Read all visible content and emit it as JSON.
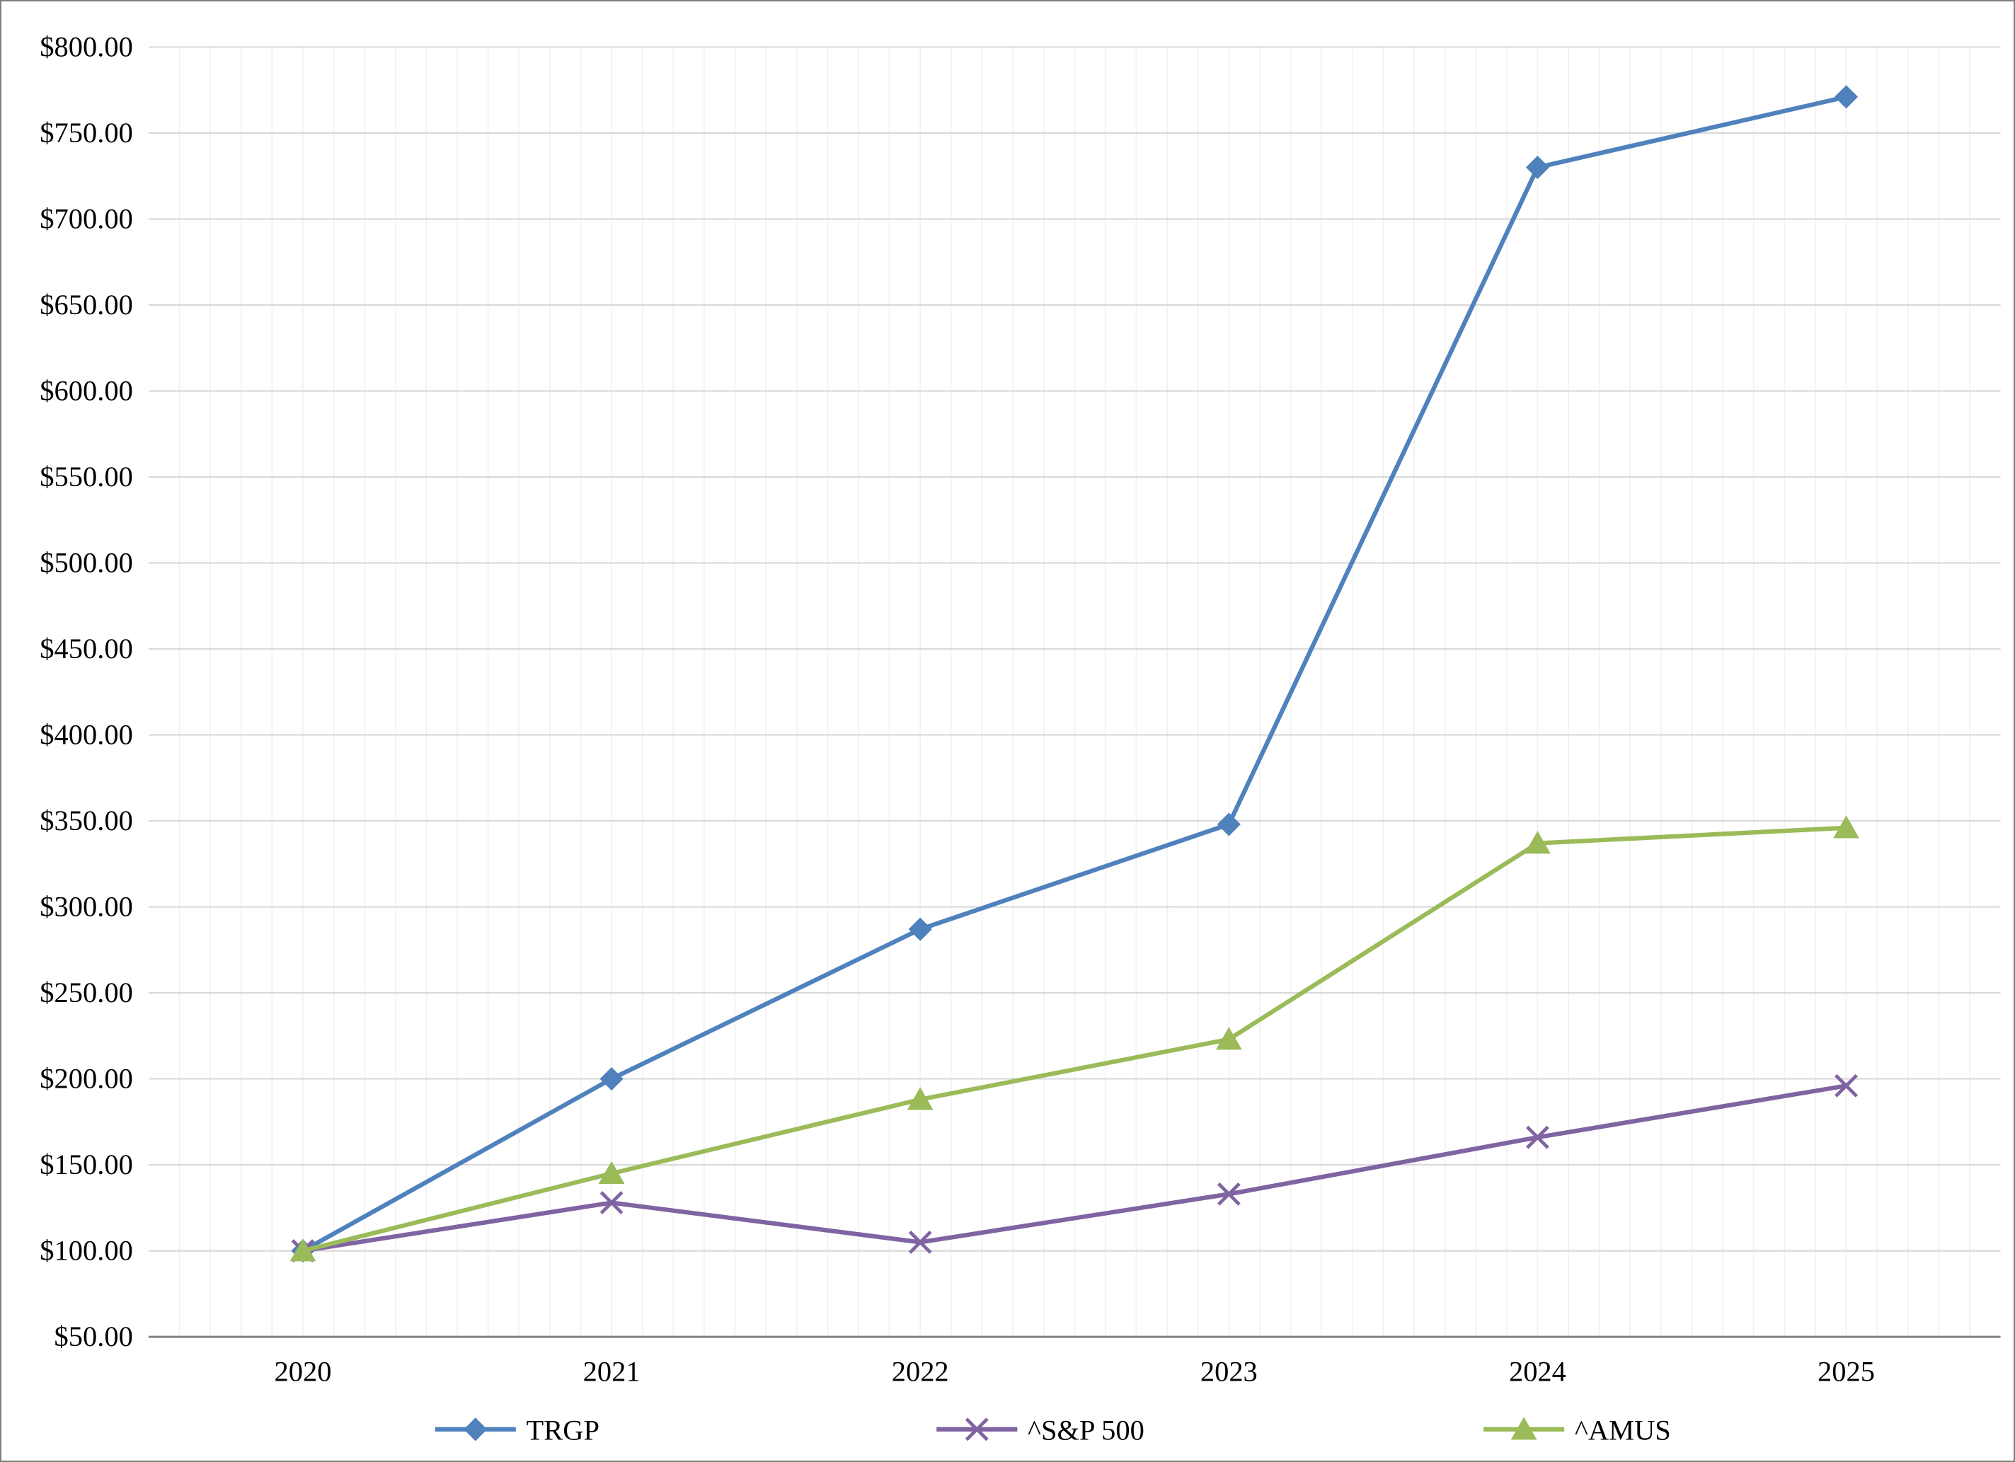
{
  "page": {
    "background": "#ffffff",
    "border_color": "#7f7f7f"
  },
  "chart_data": {
    "type": "line",
    "title": "",
    "x_labels": [
      "2020",
      "2021",
      "2022",
      "2023",
      "2024",
      "2025"
    ],
    "ylim": [
      50,
      800
    ],
    "ytick_step": 50,
    "y_ticks": [
      {
        "value": 50,
        "label": "$50.00"
      },
      {
        "value": 100,
        "label": "$100.00"
      },
      {
        "value": 150,
        "label": "$150.00"
      },
      {
        "value": 200,
        "label": "$200.00"
      },
      {
        "value": 250,
        "label": "$250.00"
      },
      {
        "value": 300,
        "label": "$300.00"
      },
      {
        "value": 350,
        "label": "$350.00"
      },
      {
        "value": 400,
        "label": "$400.00"
      },
      {
        "value": 450,
        "label": "$450.00"
      },
      {
        "value": 500,
        "label": "$500.00"
      },
      {
        "value": 550,
        "label": "$550.00"
      },
      {
        "value": 600,
        "label": "$600.00"
      },
      {
        "value": 650,
        "label": "$650.00"
      },
      {
        "value": 700,
        "label": "$700.00"
      },
      {
        "value": 750,
        "label": "$750.00"
      },
      {
        "value": 800,
        "label": "$800.00"
      }
    ],
    "series": [
      {
        "name": "TRGP",
        "color": "#4F81BD",
        "marker": "diamond",
        "values": [
          100,
          200,
          287,
          348,
          730,
          771
        ]
      },
      {
        "name": "^S&P 500",
        "color": "#8064A2",
        "marker": "x",
        "values": [
          100,
          128,
          105,
          133,
          166,
          196
        ]
      },
      {
        "name": "^AMUS",
        "color": "#9BBB59",
        "marker": "triangle",
        "values": [
          100,
          145,
          188,
          223,
          337,
          346
        ]
      }
    ],
    "grid": {
      "horizontal_major": true,
      "vertical_minor": true
    },
    "gridline_color": "#d9d9d9",
    "minor_gridline_color": "#f2f2f2",
    "axis_color": "#7f7f7f",
    "legend_position": "bottom"
  }
}
